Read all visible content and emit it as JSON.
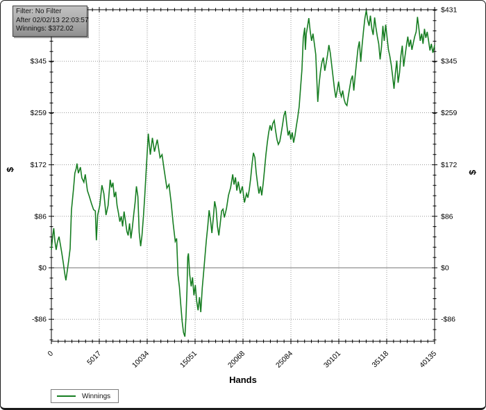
{
  "window": {
    "title": "Winnings graph",
    "background": "#ffffff",
    "border_color": "#1b1b1b"
  },
  "info_box": {
    "lines": [
      "Filter: No Filter",
      "After 02/02/13 22:03:57",
      "Winnings: $372.02"
    ]
  },
  "axes": {
    "x_title": "Hands",
    "y_title_left": "$",
    "y_title_right": "$"
  },
  "legend": {
    "label": "Winnings",
    "line_color": "#167d21"
  },
  "colors": {
    "series_green": "#167d21",
    "grid_dotted": "#999999",
    "zero_line": "#707070",
    "axis": "#000000"
  },
  "chart_data": {
    "type": "line",
    "title": "",
    "xlabel": "Hands",
    "ylabel": "$",
    "xlim": [
      0,
      40135
    ],
    "ylim": [
      -123,
      431
    ],
    "x_ticks": [
      0,
      5017,
      10034,
      15051,
      20068,
      25084,
      30101,
      35118,
      40135
    ],
    "x_tick_labels": [
      "0",
      "5017",
      "10034",
      "15051",
      "20068",
      "25084",
      "30101",
      "35118",
      "40135"
    ],
    "y_ticks": [
      431,
      345,
      259,
      172,
      86,
      0,
      -86
    ],
    "y_tick_labels": [
      "$431",
      "$345",
      "$259",
      "$172",
      "$86",
      "$0",
      "-$86"
    ],
    "grid": "dotted at major ticks, both axes",
    "zero_line": true,
    "legend_position": "bottom-left",
    "final_value": 372.02,
    "series": [
      {
        "name": "Winnings",
        "color": "#167d21",
        "points": [
          [
            0,
            30
          ],
          [
            150,
            55
          ],
          [
            250,
            66
          ],
          [
            360,
            45
          ],
          [
            500,
            30
          ],
          [
            650,
            44
          ],
          [
            800,
            52
          ],
          [
            950,
            38
          ],
          [
            1100,
            24
          ],
          [
            1250,
            8
          ],
          [
            1400,
            -10
          ],
          [
            1520,
            -21
          ],
          [
            1670,
            -4
          ],
          [
            1810,
            12
          ],
          [
            1960,
            32
          ],
          [
            2100,
            96
          ],
          [
            2320,
            132
          ],
          [
            2460,
            158
          ],
          [
            2600,
            166
          ],
          [
            2680,
            174
          ],
          [
            2830,
            158
          ],
          [
            3040,
            168
          ],
          [
            3190,
            150
          ],
          [
            3400,
            143
          ],
          [
            3550,
            156
          ],
          [
            3770,
            129
          ],
          [
            3980,
            119
          ],
          [
            4200,
            107
          ],
          [
            4420,
            97
          ],
          [
            4600,
            95
          ],
          [
            4710,
            46
          ],
          [
            4850,
            88
          ],
          [
            5070,
            104
          ],
          [
            5290,
            138
          ],
          [
            5500,
            124
          ],
          [
            5720,
            88
          ],
          [
            5940,
            104
          ],
          [
            6160,
            147
          ],
          [
            6300,
            134
          ],
          [
            6450,
            142
          ],
          [
            6590,
            118
          ],
          [
            6740,
            127
          ],
          [
            6880,
            104
          ],
          [
            7030,
            91
          ],
          [
            7170,
            77
          ],
          [
            7320,
            86
          ],
          [
            7460,
            69
          ],
          [
            7610,
            94
          ],
          [
            7750,
            79
          ],
          [
            7900,
            61
          ],
          [
            8040,
            54
          ],
          [
            8190,
            74
          ],
          [
            8330,
            49
          ],
          [
            8480,
            67
          ],
          [
            8620,
            89
          ],
          [
            8770,
            109
          ],
          [
            8910,
            136
          ],
          [
            9060,
            119
          ],
          [
            9200,
            59
          ],
          [
            9350,
            36
          ],
          [
            9490,
            54
          ],
          [
            9640,
            86
          ],
          [
            9780,
            120
          ],
          [
            9930,
            164
          ],
          [
            10150,
            224
          ],
          [
            10360,
            189
          ],
          [
            10580,
            217
          ],
          [
            10800,
            194
          ],
          [
            11090,
            214
          ],
          [
            11380,
            184
          ],
          [
            11590,
            189
          ],
          [
            11810,
            164
          ],
          [
            12100,
            133
          ],
          [
            12320,
            139
          ],
          [
            12540,
            109
          ],
          [
            12750,
            74
          ],
          [
            12970,
            44
          ],
          [
            13120,
            49
          ],
          [
            13260,
            -12
          ],
          [
            13410,
            -32
          ],
          [
            13550,
            -62
          ],
          [
            13700,
            -90
          ],
          [
            13840,
            -108
          ],
          [
            13980,
            -115
          ],
          [
            14100,
            -82
          ],
          [
            14200,
            -38
          ],
          [
            14280,
            18
          ],
          [
            14350,
            24
          ],
          [
            14490,
            -12
          ],
          [
            14640,
            -31
          ],
          [
            14780,
            -16
          ],
          [
            14930,
            -46
          ],
          [
            15070,
            -29
          ],
          [
            15220,
            -56
          ],
          [
            15360,
            -71
          ],
          [
            15510,
            -49
          ],
          [
            15650,
            -74
          ],
          [
            15800,
            -34
          ],
          [
            15940,
            -9
          ],
          [
            16090,
            20
          ],
          [
            16230,
            46
          ],
          [
            16380,
            70
          ],
          [
            16520,
            96
          ],
          [
            16670,
            79
          ],
          [
            16810,
            58
          ],
          [
            16960,
            84
          ],
          [
            17100,
            111
          ],
          [
            17250,
            99
          ],
          [
            17390,
            69
          ],
          [
            17540,
            54
          ],
          [
            17680,
            74
          ],
          [
            17830,
            95
          ],
          [
            17970,
            98
          ],
          [
            18120,
            84
          ],
          [
            18340,
            99
          ],
          [
            18550,
            121
          ],
          [
            18770,
            134
          ],
          [
            18990,
            156
          ],
          [
            19130,
            139
          ],
          [
            19280,
            151
          ],
          [
            19420,
            129
          ],
          [
            19570,
            144
          ],
          [
            19790,
            124
          ],
          [
            20000,
            136
          ],
          [
            20220,
            109
          ],
          [
            20440,
            124
          ],
          [
            20580,
            117
          ],
          [
            20730,
            131
          ],
          [
            20870,
            149
          ],
          [
            21020,
            174
          ],
          [
            21160,
            192
          ],
          [
            21310,
            184
          ],
          [
            21450,
            159
          ],
          [
            21600,
            139
          ],
          [
            21740,
            124
          ],
          [
            21890,
            136
          ],
          [
            22030,
            121
          ],
          [
            22180,
            141
          ],
          [
            22320,
            164
          ],
          [
            22470,
            189
          ],
          [
            22610,
            209
          ],
          [
            22760,
            226
          ],
          [
            22900,
            238
          ],
          [
            23050,
            229
          ],
          [
            23190,
            241
          ],
          [
            23340,
            246
          ],
          [
            23480,
            229
          ],
          [
            23630,
            214
          ],
          [
            23770,
            206
          ],
          [
            23920,
            211
          ],
          [
            24060,
            224
          ],
          [
            24210,
            239
          ],
          [
            24350,
            254
          ],
          [
            24500,
            262
          ],
          [
            24640,
            241
          ],
          [
            24790,
            221
          ],
          [
            24930,
            229
          ],
          [
            25080,
            214
          ],
          [
            25220,
            226
          ],
          [
            25370,
            209
          ],
          [
            25510,
            221
          ],
          [
            25660,
            237
          ],
          [
            25800,
            251
          ],
          [
            25950,
            269
          ],
          [
            26090,
            299
          ],
          [
            26240,
            331
          ],
          [
            26380,
            384
          ],
          [
            26530,
            401
          ],
          [
            26600,
            364
          ],
          [
            26700,
            391
          ],
          [
            26820,
            403
          ],
          [
            26960,
            417
          ],
          [
            27110,
            394
          ],
          [
            27250,
            379
          ],
          [
            27400,
            391
          ],
          [
            27540,
            374
          ],
          [
            27690,
            356
          ],
          [
            27900,
            277
          ],
          [
            28050,
            309
          ],
          [
            28190,
            329
          ],
          [
            28340,
            344
          ],
          [
            28480,
            351
          ],
          [
            28630,
            329
          ],
          [
            28770,
            341
          ],
          [
            28920,
            356
          ],
          [
            29060,
            372
          ],
          [
            29210,
            359
          ],
          [
            29350,
            339
          ],
          [
            29500,
            319
          ],
          [
            29640,
            299
          ],
          [
            29790,
            284
          ],
          [
            29930,
            296
          ],
          [
            30080,
            311
          ],
          [
            30220,
            294
          ],
          [
            30370,
            286
          ],
          [
            30510,
            296
          ],
          [
            30660,
            281
          ],
          [
            30800,
            274
          ],
          [
            30950,
            271
          ],
          [
            31090,
            286
          ],
          [
            31240,
            301
          ],
          [
            31380,
            314
          ],
          [
            31530,
            321
          ],
          [
            31670,
            296
          ],
          [
            31820,
            321
          ],
          [
            31960,
            344
          ],
          [
            32110,
            366
          ],
          [
            32250,
            378
          ],
          [
            32400,
            344
          ],
          [
            32540,
            371
          ],
          [
            32690,
            396
          ],
          [
            32830,
            416
          ],
          [
            32980,
            430
          ],
          [
            33120,
            414
          ],
          [
            33270,
            404
          ],
          [
            33410,
            421
          ],
          [
            33560,
            399
          ],
          [
            33700,
            389
          ],
          [
            33850,
            418
          ],
          [
            33990,
            401
          ],
          [
            34140,
            386
          ],
          [
            34280,
            374
          ],
          [
            34430,
            348
          ],
          [
            34570,
            369
          ],
          [
            34720,
            404
          ],
          [
            34860,
            379
          ],
          [
            35010,
            406
          ],
          [
            35150,
            386
          ],
          [
            35300,
            364
          ],
          [
            35440,
            354
          ],
          [
            35590,
            339
          ],
          [
            35730,
            321
          ],
          [
            35880,
            299
          ],
          [
            36020,
            324
          ],
          [
            36170,
            346
          ],
          [
            36310,
            309
          ],
          [
            36460,
            326
          ],
          [
            36600,
            354
          ],
          [
            36750,
            371
          ],
          [
            36890,
            336
          ],
          [
            37040,
            354
          ],
          [
            37180,
            371
          ],
          [
            37330,
            386
          ],
          [
            37470,
            369
          ],
          [
            37620,
            381
          ],
          [
            37760,
            364
          ],
          [
            37910,
            376
          ],
          [
            38050,
            386
          ],
          [
            38200,
            394
          ],
          [
            38340,
            419
          ],
          [
            38490,
            399
          ],
          [
            38630,
            379
          ],
          [
            38780,
            391
          ],
          [
            38920,
            374
          ],
          [
            39070,
            399
          ],
          [
            39210,
            384
          ],
          [
            39360,
            394
          ],
          [
            39500,
            379
          ],
          [
            39650,
            363
          ],
          [
            39790,
            374
          ],
          [
            39950,
            359
          ],
          [
            40135,
            372
          ]
        ]
      }
    ]
  }
}
